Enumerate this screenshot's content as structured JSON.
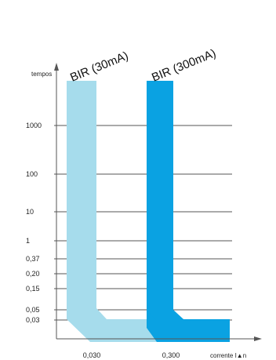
{
  "chart_data": {
    "type": "area",
    "title": "",
    "ylabel": "tempos",
    "xlabel": "corrente I▲n",
    "y_ticks": [
      "1000",
      "100",
      "10",
      "1",
      "0,37",
      "0,20",
      "0,15",
      "0,05",
      "0,03"
    ],
    "x_ticks": [
      "0,030",
      "0,300"
    ],
    "grid": true,
    "series": [
      {
        "name": "BIR (30mA)",
        "color": "#a6dcec",
        "sensitivity_A": 0.03
      },
      {
        "name": "BIR (300mA)",
        "color": "#0aa2e2",
        "sensitivity_A": 0.3
      }
    ]
  }
}
